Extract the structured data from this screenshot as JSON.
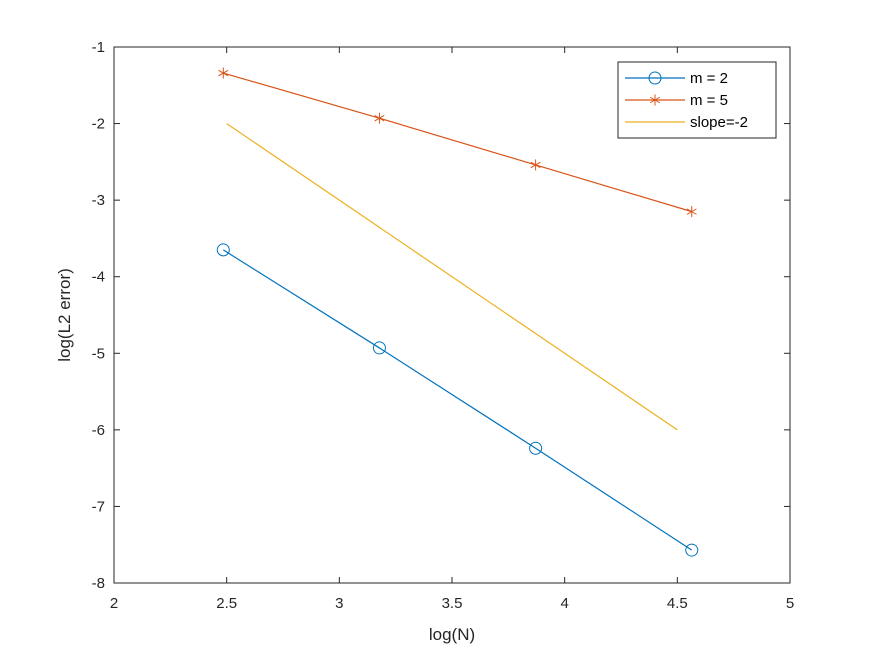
{
  "chart_data": {
    "type": "line",
    "xlabel": "log(N)",
    "ylabel": "log(L2 error)",
    "xlim": [
      2,
      5
    ],
    "ylim": [
      -8,
      -1
    ],
    "xticks": [
      "2",
      "2.5",
      "3",
      "3.5",
      "4",
      "4.5",
      "5"
    ],
    "yticks": [
      "-1",
      "-2",
      "-3",
      "-4",
      "-5",
      "-6",
      "-7",
      "-8"
    ],
    "grid": false,
    "legend_position": "top-right",
    "series": [
      {
        "name": "m = 2",
        "color": "#0072BD",
        "marker": "circle",
        "x": [
          2.485,
          3.178,
          3.871,
          4.564
        ],
        "y": [
          -3.65,
          -4.93,
          -6.24,
          -7.57
        ]
      },
      {
        "name": "m = 5",
        "color": "#D95319",
        "marker": "asterisk",
        "x": [
          2.485,
          3.178,
          3.871,
          4.564
        ],
        "y": [
          -1.34,
          -1.93,
          -2.54,
          -3.15
        ]
      },
      {
        "name": "slope=-2",
        "color": "#EDB120",
        "marker": "none",
        "x": [
          2.5,
          4.5
        ],
        "y": [
          -2,
          -6
        ]
      }
    ]
  }
}
